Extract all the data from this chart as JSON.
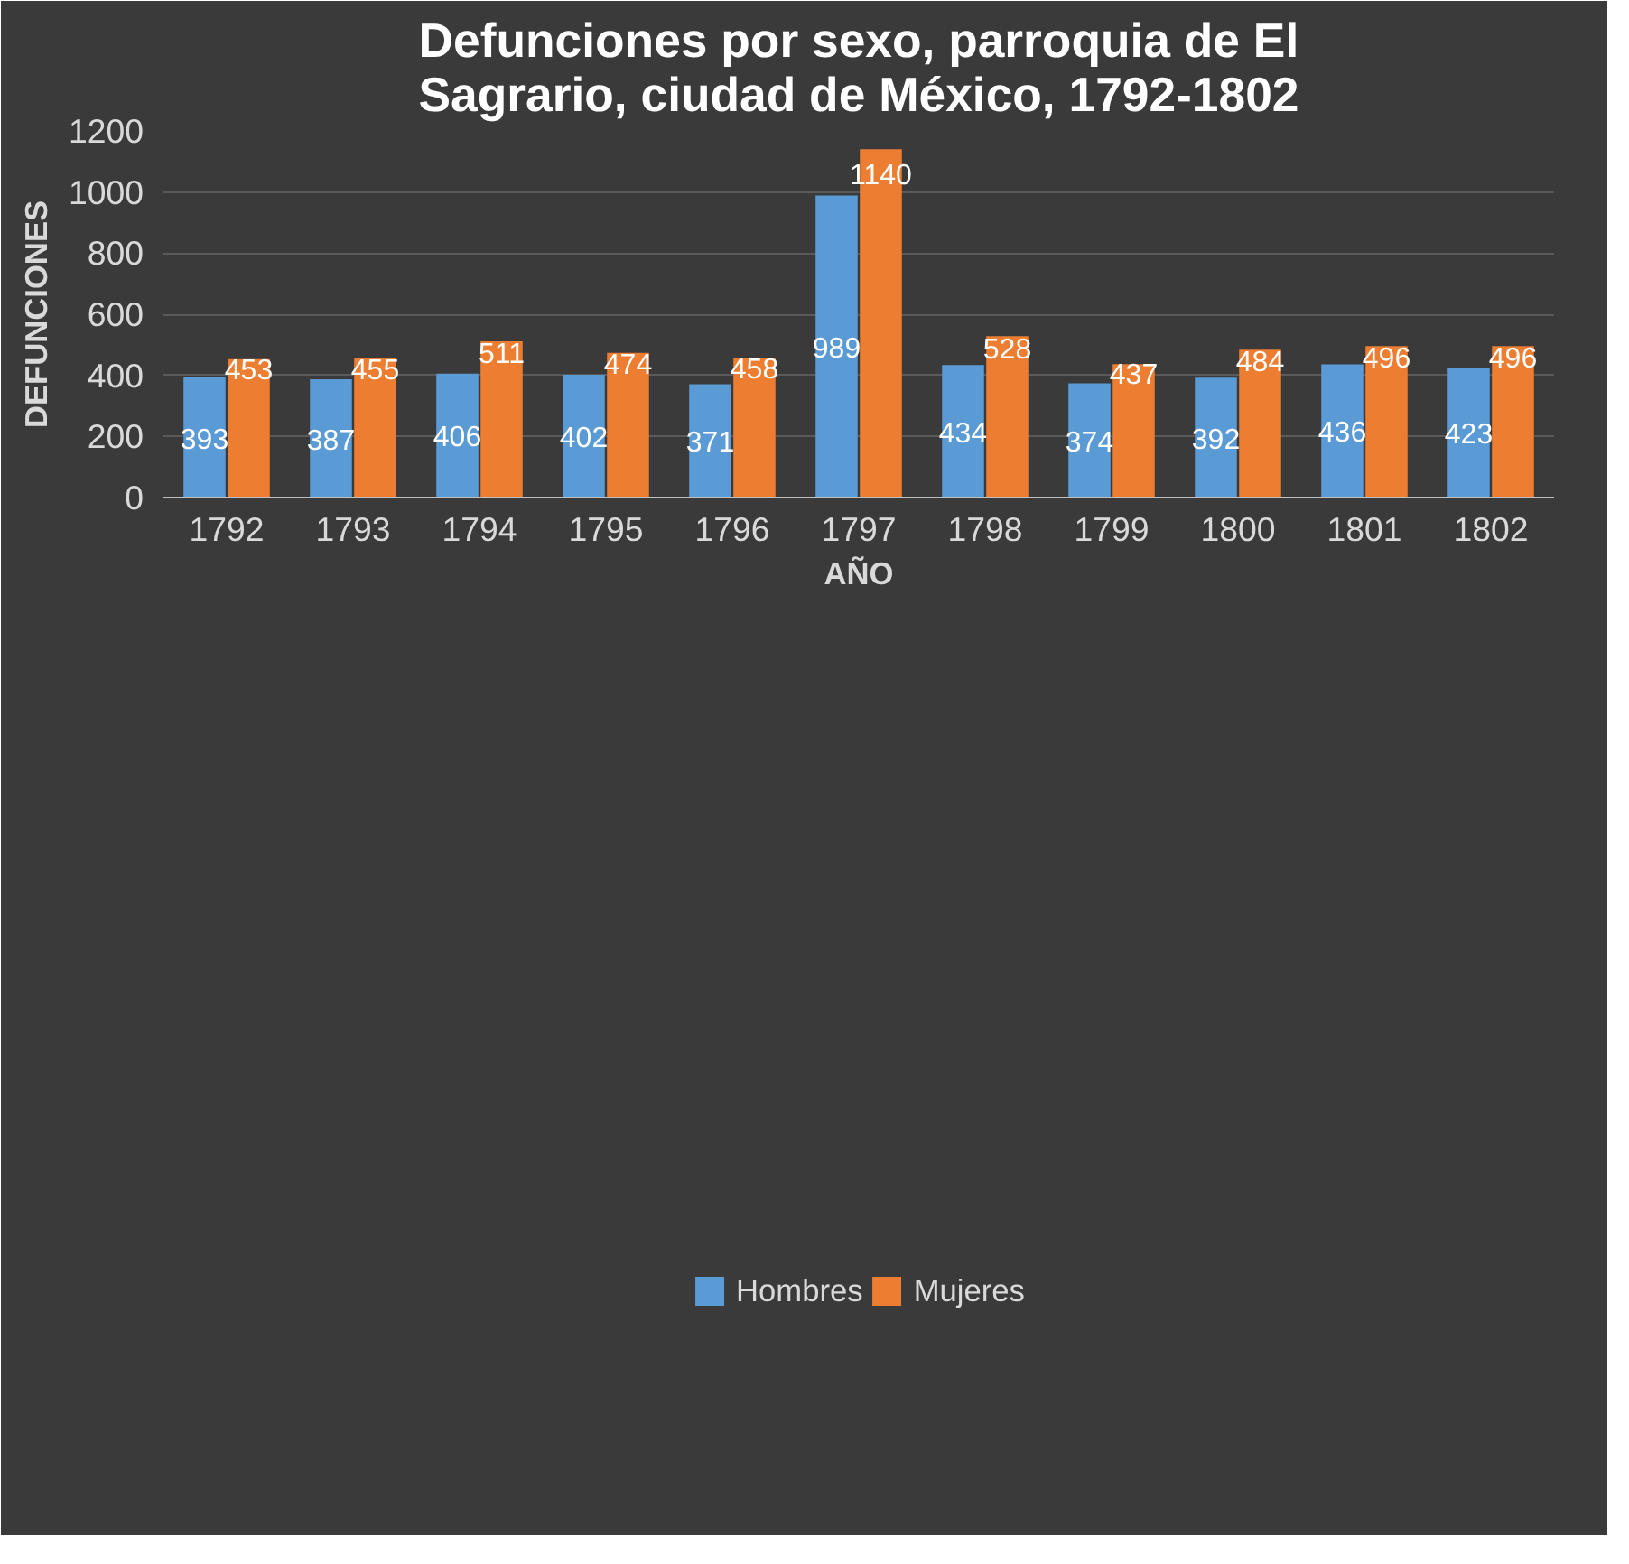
{
  "chart_data": {
    "type": "bar",
    "title": "Defunciones por sexo, parroquia de El Sagrario, ciudad de México, 1792-1802",
    "xlabel": "AÑO",
    "ylabel": "DEFUNCIONES",
    "categories": [
      "1792",
      "1793",
      "1794",
      "1795",
      "1796",
      "1797",
      "1798",
      "1799",
      "1800",
      "1801",
      "1802"
    ],
    "series": [
      {
        "name": "Hombres",
        "color": "#5b9bd5",
        "values": [
          393,
          387,
          406,
          402,
          371,
          989,
          434,
          374,
          392,
          436,
          423
        ]
      },
      {
        "name": "Mujeres",
        "color": "#ed7d31",
        "values": [
          453,
          455,
          511,
          474,
          458,
          1140,
          528,
          437,
          484,
          496,
          496
        ]
      }
    ],
    "ylim": [
      0,
      1200
    ],
    "yticks": [
      0,
      200,
      400,
      600,
      800,
      1000,
      1200
    ],
    "grid": "y",
    "legend": "bottom",
    "data_labels": true
  }
}
